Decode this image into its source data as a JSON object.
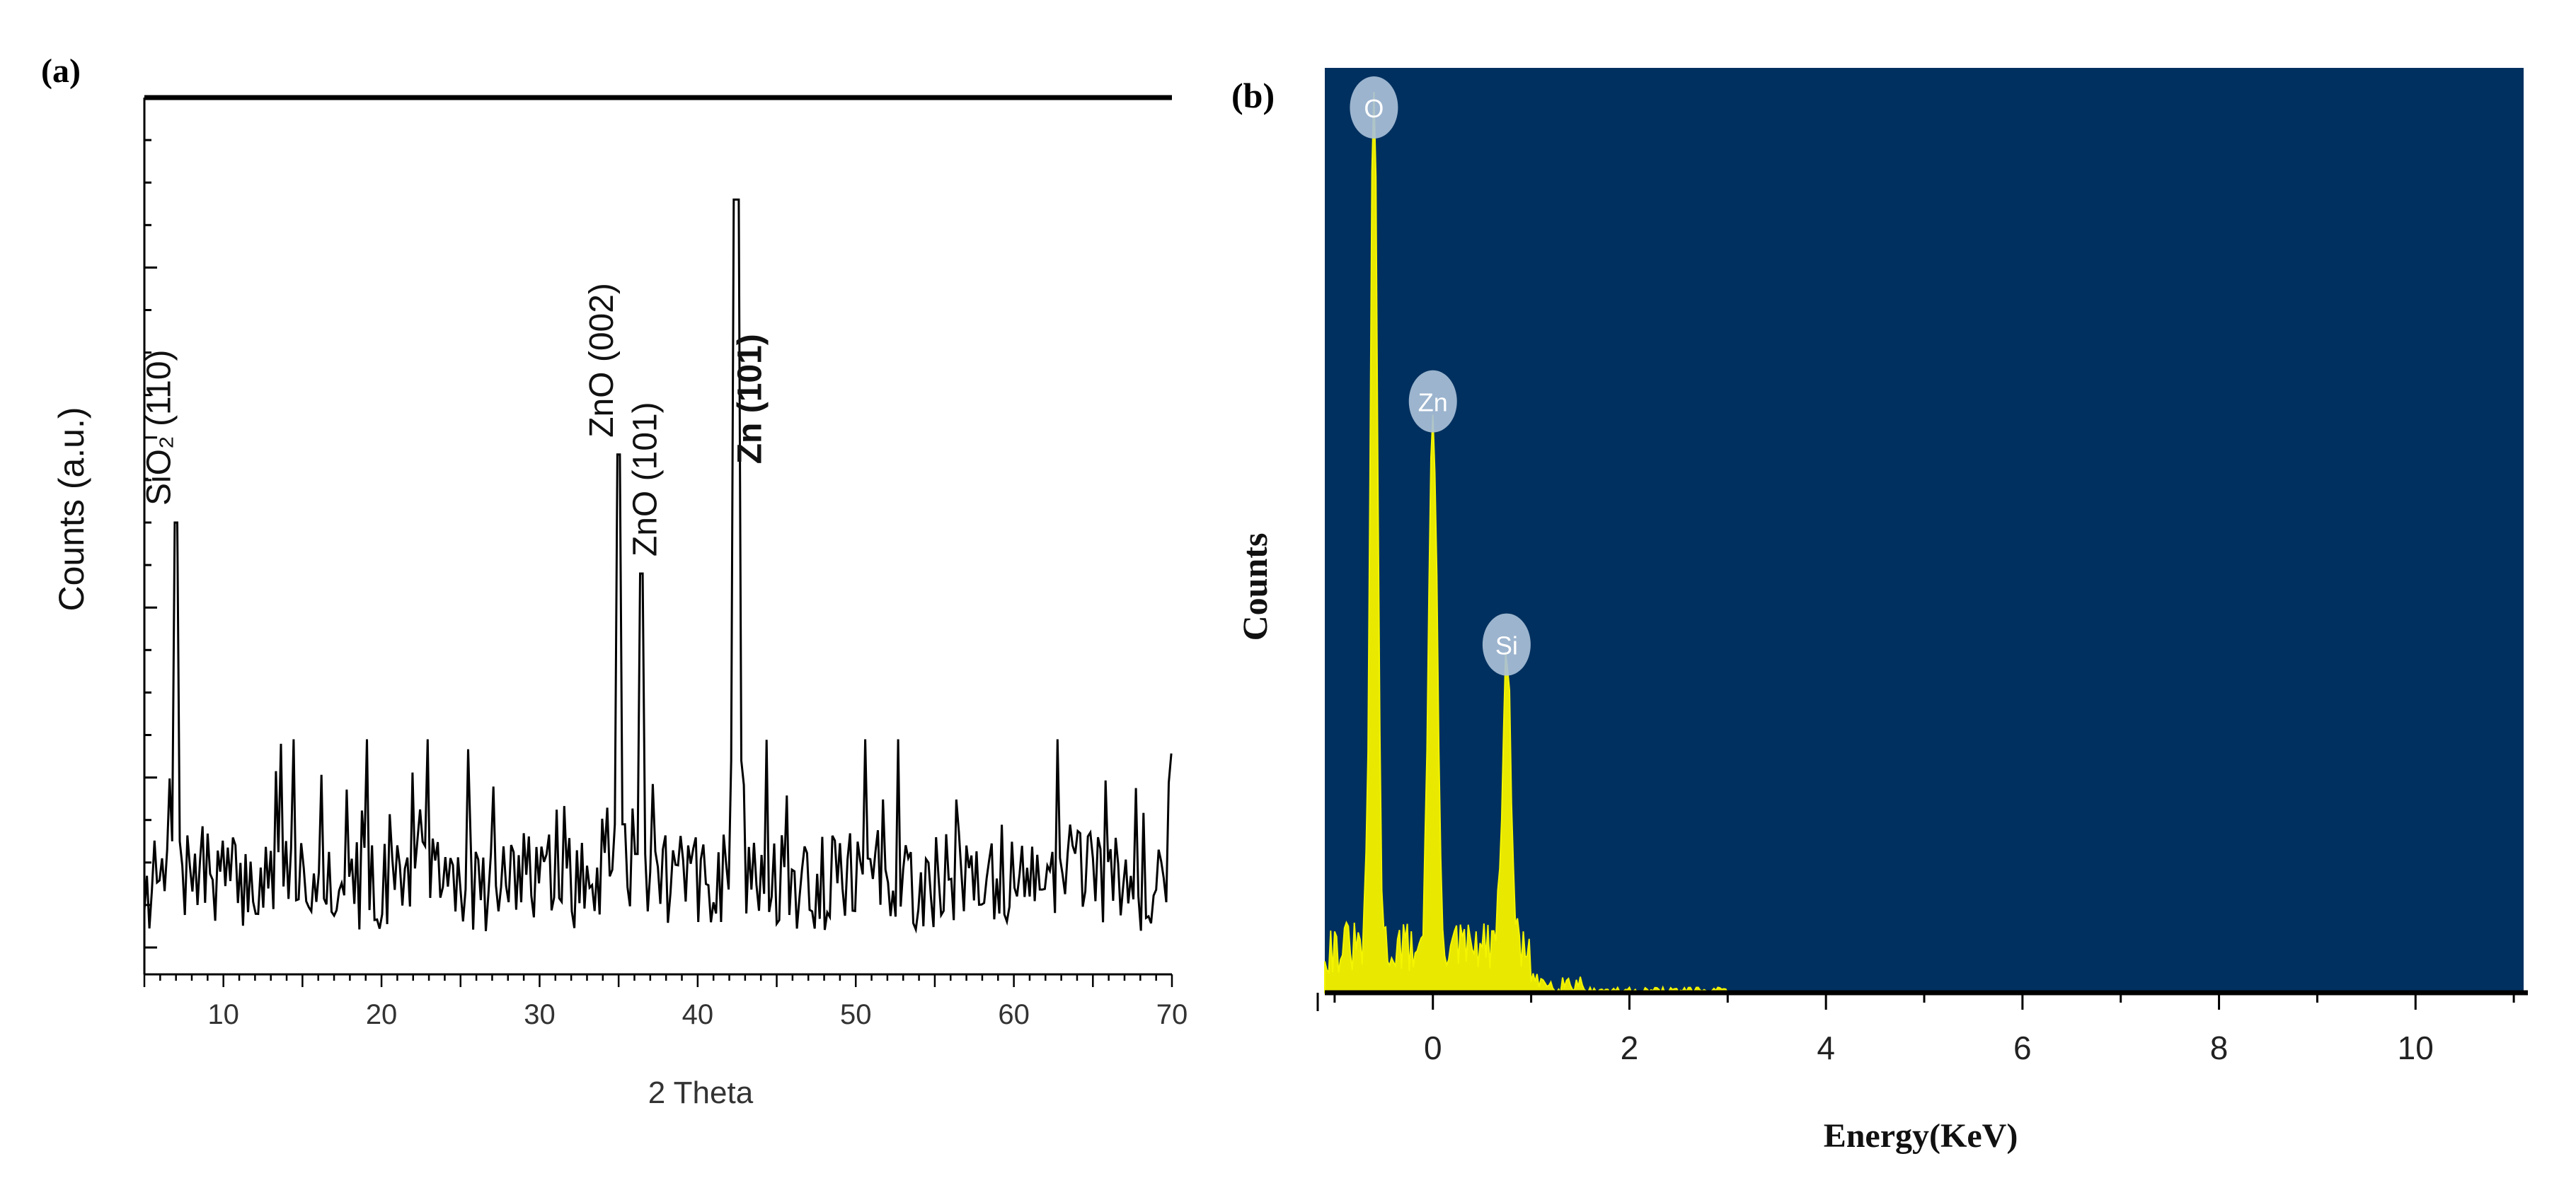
{
  "chart_data": [
    {
      "panel_label": "(a)",
      "type": "line",
      "xlabel": "2 Theta",
      "ylabel": "Counts (a.u.)",
      "xlim": [
        5,
        70
      ],
      "ylim": [
        0,
        1000
      ],
      "x_ticks": [
        "10",
        "20",
        "30",
        "40",
        "50",
        "60",
        "70"
      ],
      "grid": false,
      "peaks": [
        {
          "label": "SiO₂ (110)",
          "x": 7.0,
          "y": 500
        },
        {
          "label": "ZnO (002)",
          "x": 35.0,
          "y": 580
        },
        {
          "label": "ZnO (101)",
          "x": 36.4,
          "y": 440
        },
        {
          "label": "Zn (101)",
          "x": 42.4,
          "y": 880
        }
      ],
      "background": {
        "x_start": 5,
        "x_end": 70,
        "typical": 80,
        "max_noise": 245
      }
    },
    {
      "panel_label": "(b)",
      "type": "area",
      "xlabel": "Energy(KeV)",
      "ylabel": "Counts",
      "xlim": [
        -1.1,
        11.1
      ],
      "ylim": [
        0,
        1000
      ],
      "x_ticks": [
        "0",
        "2",
        "4",
        "6",
        "8",
        "10"
      ],
      "grid": false,
      "plot_background": "#00305F",
      "fill_color": "#E8E800",
      "peaks": [
        {
          "label": "O",
          "x": -0.6,
          "y": 1000
        },
        {
          "label": "Zn",
          "x": 0.0,
          "y": 600
        },
        {
          "label": "Si",
          "x": 0.75,
          "y": 330
        }
      ]
    }
  ]
}
